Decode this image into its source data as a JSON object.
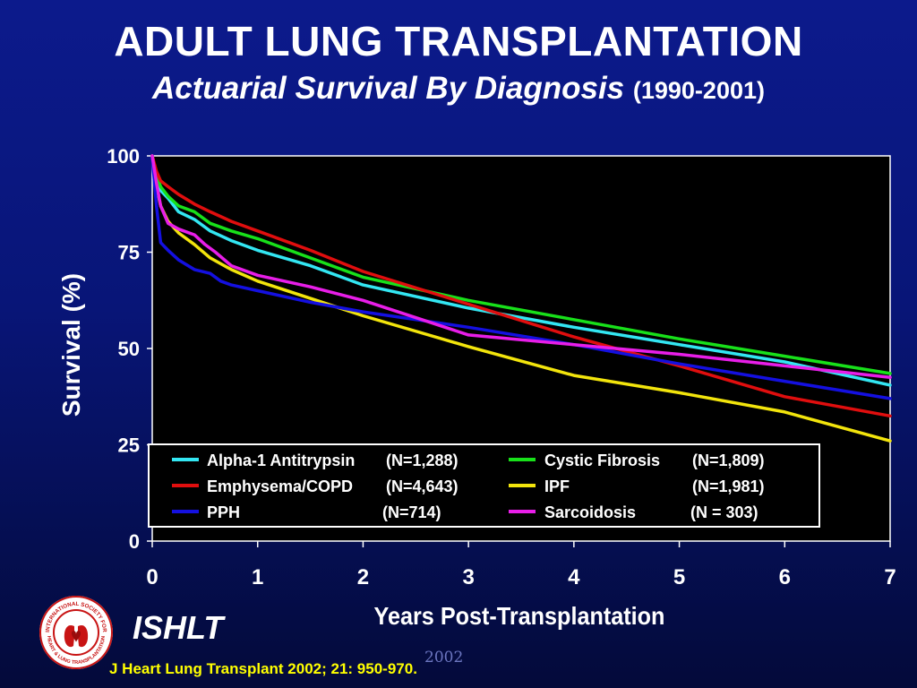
{
  "slide": {
    "title": "ADULT LUNG TRANSPLANTATION",
    "subtitle": "Actuarial Survival By Diagnosis",
    "subtitle_years": "(1990-2001)",
    "org_label": "ISHLT",
    "year_mark": "2002",
    "citation": "J Heart Lung Transplant 2002; 21: 950-970."
  },
  "logo": {
    "icon": "ishlt-seal-icon",
    "text_top": "INTERNATIONAL SOCIETY FOR",
    "text_bottom": "HEART & LUNG TRANSPLANTATION"
  },
  "chart_data": {
    "type": "line",
    "xlabel": "Years Post-Transplantation",
    "ylabel": "Survival (%)",
    "xlim": [
      0,
      7
    ],
    "ylim": [
      0,
      100
    ],
    "x_ticks": [
      0,
      1,
      2,
      3,
      4,
      5,
      6,
      7
    ],
    "y_ticks": [
      0,
      25,
      50,
      75,
      100
    ],
    "grid": false,
    "legend_position": "bottom-inside",
    "series": [
      {
        "name": "Alpha-1 Antitrypsin",
        "n": "(N=1,288)",
        "color": "#33e6f2",
        "x": [
          0,
          0.04,
          0.08,
          0.15,
          0.25,
          0.4,
          0.55,
          0.75,
          1,
          1.5,
          2,
          3,
          4,
          5,
          6,
          7
        ],
        "y": [
          100,
          95,
          91,
          89,
          85.5,
          83.5,
          80.5,
          78,
          75.5,
          71.5,
          66.5,
          60.5,
          55.5,
          51,
          46.5,
          40.5
        ]
      },
      {
        "name": "Cystic Fibrosis",
        "n": "(N=1,809)",
        "color": "#18e01a",
        "x": [
          0,
          0.04,
          0.08,
          0.15,
          0.25,
          0.4,
          0.55,
          0.75,
          1,
          1.5,
          2,
          3,
          4,
          5,
          6,
          7
        ],
        "y": [
          100,
          95,
          92,
          89.5,
          87,
          85.5,
          82.5,
          80.5,
          78.5,
          73.5,
          68.5,
          62.5,
          57.5,
          52.5,
          48,
          43.5
        ]
      },
      {
        "name": "Emphysema/COPD",
        "n": "(N=4,643)",
        "color": "#e00e0e",
        "x": [
          0,
          0.04,
          0.08,
          0.15,
          0.25,
          0.4,
          0.55,
          0.75,
          1,
          1.5,
          2,
          3,
          4,
          5,
          6,
          7
        ],
        "y": [
          100,
          96,
          93.5,
          92,
          90,
          87.5,
          85.5,
          83,
          80.5,
          75.5,
          70,
          61.5,
          53,
          45.5,
          37.5,
          32.5
        ]
      },
      {
        "name": "IPF",
        "n": "(N=1,981)",
        "color": "#f2e40c",
        "x": [
          0,
          0.04,
          0.08,
          0.15,
          0.25,
          0.4,
          0.55,
          0.75,
          1,
          1.5,
          2,
          3,
          4,
          5,
          6,
          7
        ],
        "y": [
          100,
          92,
          87,
          83,
          80,
          77,
          73.5,
          70.5,
          67.5,
          63,
          58.5,
          50.5,
          43,
          38.5,
          33.5,
          26
        ]
      },
      {
        "name": "PPH",
        "n": "(N=714)",
        "color": "#1410e0",
        "x": [
          0,
          0.04,
          0.08,
          0.15,
          0.25,
          0.4,
          0.55,
          0.65,
          0.75,
          1,
          1.5,
          2,
          3,
          4,
          5,
          6,
          7
        ],
        "y": [
          100,
          87,
          77.5,
          75.5,
          73,
          70.5,
          69.5,
          67.5,
          66.5,
          65,
          62,
          59.5,
          55.5,
          51,
          46,
          41.5,
          37
        ]
      },
      {
        "name": "Sarcoidosis",
        "n": "(N = 303)",
        "color": "#e81ee8",
        "x": [
          0,
          0.04,
          0.08,
          0.15,
          0.25,
          0.4,
          0.5,
          0.6,
          0.75,
          1,
          1.5,
          2,
          2.5,
          3,
          4,
          5,
          6,
          7
        ],
        "y": [
          100,
          93,
          87,
          82.5,
          81,
          79.5,
          77,
          75,
          71.5,
          69,
          66,
          62.5,
          58,
          53.5,
          51,
          48.5,
          45.5,
          42.5
        ]
      }
    ]
  }
}
